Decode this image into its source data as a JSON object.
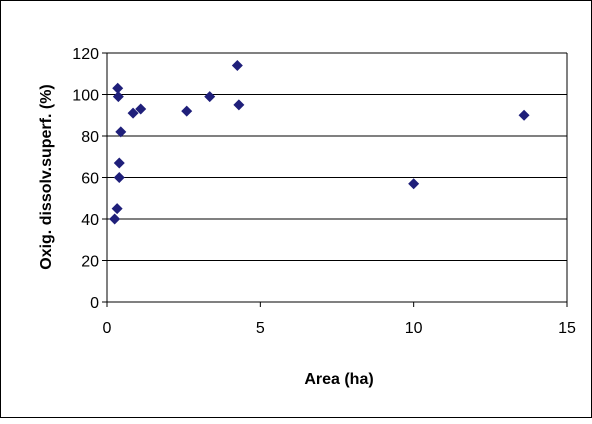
{
  "chart_data": {
    "type": "scatter",
    "title": "",
    "xlabel": "Area (ha)",
    "ylabel": "Oxig. dissolv.superf. (%)",
    "xlim": [
      0,
      15
    ],
    "ylim": [
      0,
      120
    ],
    "x_ticks": [
      0,
      5,
      10,
      15
    ],
    "y_ticks": [
      0,
      20,
      40,
      60,
      80,
      100,
      120
    ],
    "grid": "horizontal",
    "legend": "none",
    "marker": "diamond",
    "marker_color": "#1f1f7a",
    "points": [
      {
        "x": 0.25,
        "y": 40
      },
      {
        "x": 0.33,
        "y": 45
      },
      {
        "x": 0.35,
        "y": 103
      },
      {
        "x": 0.37,
        "y": 99
      },
      {
        "x": 0.4,
        "y": 67
      },
      {
        "x": 0.4,
        "y": 60
      },
      {
        "x": 0.45,
        "y": 82
      },
      {
        "x": 0.85,
        "y": 91
      },
      {
        "x": 1.1,
        "y": 93
      },
      {
        "x": 2.6,
        "y": 92
      },
      {
        "x": 3.35,
        "y": 99
      },
      {
        "x": 4.25,
        "y": 114
      },
      {
        "x": 4.3,
        "y": 95
      },
      {
        "x": 10.0,
        "y": 57
      },
      {
        "x": 13.6,
        "y": 90
      }
    ]
  }
}
